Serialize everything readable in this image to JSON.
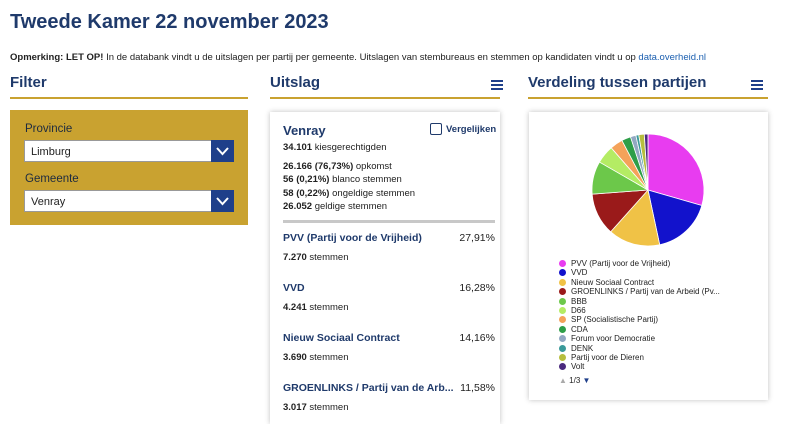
{
  "header": {
    "title": "Tweede Kamer 22 november 2023"
  },
  "notice": {
    "label": "Opmerking: LET OP!",
    "text": "In de databank vindt u de uitslagen per partij per gemeente. Uitslagen van stembureaus en stemmen op kandidaten vindt u op",
    "link": "data.overheid.nl"
  },
  "filter": {
    "heading": "Filter",
    "fields": [
      {
        "label": "Provincie",
        "value": "Limburg"
      },
      {
        "label": "Gemeente",
        "value": "Venray"
      }
    ]
  },
  "result": {
    "heading": "Uitslag",
    "place": "Venray",
    "compare": "Vergelijken",
    "stats": [
      {
        "value": "34.101",
        "label": "kiesgerechtigden"
      },
      {
        "value": "26.166 (76,73%)",
        "label": "opkomst"
      },
      {
        "value": "56 (0,21%)",
        "label": "blanco stemmen"
      },
      {
        "value": "58 (0,22%)",
        "label": "ongeldige stemmen"
      },
      {
        "value": "26.052",
        "label": "geldige stemmen"
      }
    ],
    "parties": [
      {
        "name": "PVV (Partij voor de Vrijheid)",
        "percent": "27,91%",
        "votes": "7.270",
        "votes_label": "stemmen"
      },
      {
        "name": "VVD",
        "percent": "16,28%",
        "votes": "4.241",
        "votes_label": "stemmen"
      },
      {
        "name": "Nieuw Sociaal Contract",
        "percent": "14,16%",
        "votes": "3.690",
        "votes_label": "stemmen"
      },
      {
        "name": "GROENLINKS / Partij van de Arb...",
        "percent": "11,58%",
        "votes": "3.017",
        "votes_label": "stemmen"
      }
    ]
  },
  "distribution": {
    "heading": "Verdeling tussen partijen",
    "pager": "1/3"
  },
  "chart_data": {
    "type": "pie",
    "categories": [
      "PVV (Partij voor de Vrijheid)",
      "VVD",
      "Nieuw Sociaal Contract",
      "GROENLINKS / Partij van de Arbeid (Pv...",
      "BBB",
      "D66",
      "SP (Socialistische Partij)",
      "CDA",
      "Forum voor Democratie",
      "DENK",
      "Partij voor de Dieren",
      "Volt"
    ],
    "values": [
      27.91,
      16.28,
      14.16,
      11.58,
      9,
      5,
      3.5,
      2.5,
      1.5,
      0.8,
      1.5,
      1
    ],
    "colors": [
      "#e83cf0",
      "#1212cc",
      "#f0c246",
      "#9a1a1a",
      "#6cc84a",
      "#b4ec64",
      "#f4a25a",
      "#2e9e48",
      "#92a8c2",
      "#3a9a9a",
      "#b6be3e",
      "#4a2a7e"
    ]
  }
}
